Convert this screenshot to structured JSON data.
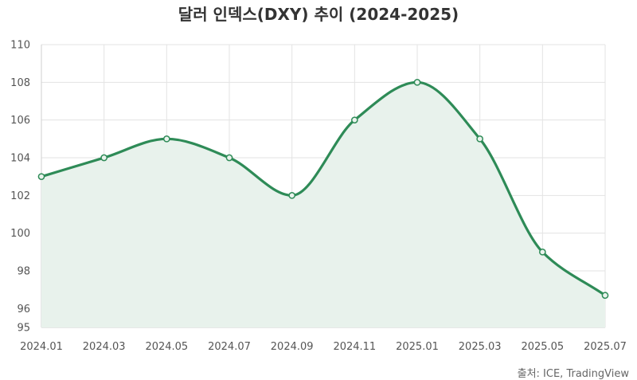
{
  "colors": {
    "series": "#2e8b57",
    "area": "#e8f2ec"
  },
  "source": "출처: ICE, TradingView",
  "chart_data": {
    "type": "line",
    "title": "달러 인덱스(DXY) 추이 (2024-2025)",
    "xlabel": "",
    "ylabel": "",
    "categories": [
      "2024.01",
      "2024.03",
      "2024.05",
      "2024.07",
      "2024.09",
      "2024.11",
      "2025.01",
      "2025.03",
      "2025.05",
      "2025.07"
    ],
    "series": [
      {
        "values": [
          103,
          104,
          105,
          104,
          102,
          106,
          108,
          105,
          99,
          96.7
        ]
      }
    ],
    "y_ticks": [
      95,
      96,
      98,
      100,
      102,
      104,
      106,
      108,
      110
    ],
    "ylim": [
      95,
      110
    ],
    "grid": true,
    "fill_area": true,
    "smooth": true
  }
}
